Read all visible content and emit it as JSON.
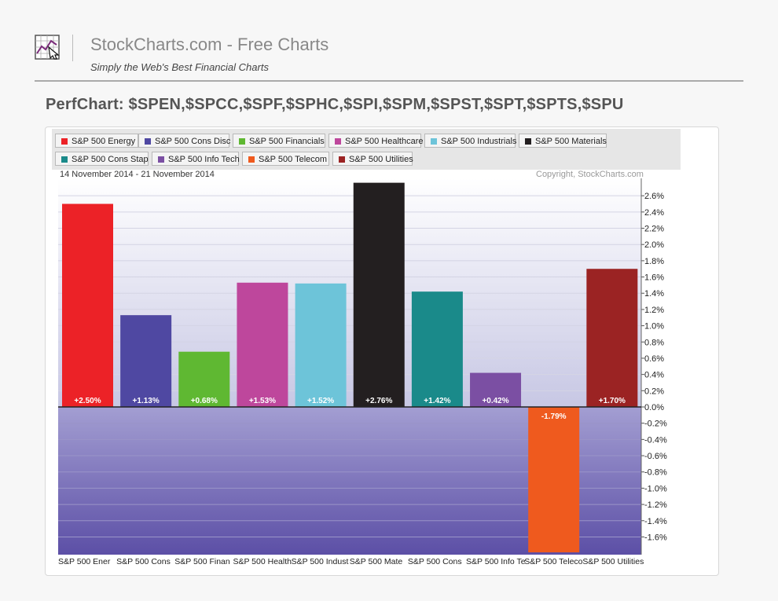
{
  "header": {
    "site_title": "StockCharts.com - Free Charts",
    "tagline": "Simply the Web's Best Financial Charts",
    "logo_icon": "chart-arrow-logo-icon"
  },
  "perf_title": "PerfChart: $SPEN,$SPCC,$SPF,$SPHC,$SPI,$SPM,$SPST,$SPT,$SPTS,$SPU",
  "date_range": "14 November 2014 - 21 November 2014",
  "copyright": "Copyright, StockCharts.com",
  "chart_data": {
    "type": "bar",
    "title": "",
    "xlabel": "",
    "ylabel": "",
    "ylim": [
      -1.8,
      2.8
    ],
    "categories": [
      "S&P 500 Energy",
      "S&P 500 Cons Disc",
      "S&P 500 Financials",
      "S&P 500 Healthcare",
      "S&P 500 Industrials",
      "S&P 500 Materials",
      "S&P 500 Cons Stap",
      "S&P 500 Info Tech",
      "S&P 500 Telecom",
      "S&P 500 Utilities"
    ],
    "x_tick_labels": [
      "S&P 500 Ener",
      "S&P 500 Cons",
      "S&P 500 Finan",
      "S&P 500 Health",
      "S&P 500 Indust",
      "S&P 500 Mate",
      "S&P 500 Cons",
      "S&P 500 Info Te",
      "S&P 500 Teleco",
      "S&P 500 Utilities"
    ],
    "values": [
      2.5,
      1.13,
      0.68,
      1.53,
      1.52,
      2.76,
      1.42,
      0.42,
      -1.79,
      1.7
    ],
    "value_labels": [
      "+2.50%",
      "+1.13%",
      "+0.68%",
      "+1.53%",
      "+1.52%",
      "+2.76%",
      "+1.42%",
      "+0.42%",
      "-1.79%",
      "+1.70%"
    ],
    "colors": [
      "#ec2227",
      "#4f48a2",
      "#5fb832",
      "#be479c",
      "#6dc4d9",
      "#231f20",
      "#1a8a8a",
      "#7b4fa3",
      "#ef5a1e",
      "#9b2323"
    ],
    "y_ticks": [
      2.6,
      2.4,
      2.2,
      2.0,
      1.8,
      1.6,
      1.4,
      1.2,
      1.0,
      0.8,
      0.6,
      0.4,
      0.2,
      0.0,
      -0.2,
      -0.4,
      -0.6,
      -0.8,
      -1.0,
      -1.2,
      -1.4,
      -1.6
    ],
    "y_tick_labels": [
      "2.6%",
      "2.4%",
      "2.2%",
      "2.0%",
      "1.8%",
      "1.6%",
      "1.4%",
      "1.2%",
      "1.0%",
      "0.8%",
      "0.6%",
      "0.4%",
      "0.2%",
      "0.0%",
      "-0.2%",
      "-0.4%",
      "-0.6%",
      "-0.8%",
      "-1.0%",
      "-1.2%",
      "-1.4%",
      "-1.6%"
    ],
    "grid": true,
    "legend_position": "top"
  }
}
